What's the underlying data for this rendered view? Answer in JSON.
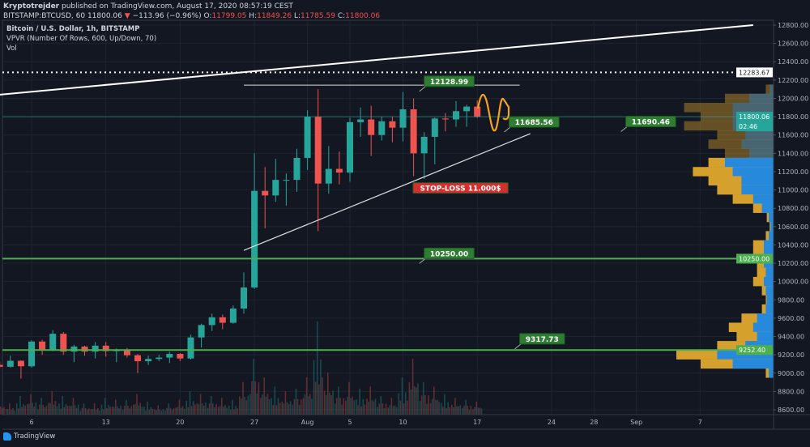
{
  "header": {
    "author": "Kryptotrejder",
    "published": "published on TradingView.com, August 17, 2020 08:57:19 CEST",
    "symbol": "BITSTAMP:BTCUSD, 60",
    "last": "11800.06",
    "change": "−113.96 (−0.96%)",
    "o_label": "O:",
    "o": "11799.05",
    "h_label": "H:",
    "h": "11849.26",
    "l_label": "L:",
    "l": "11785.59",
    "c_label": "C:",
    "c": "11800.06"
  },
  "legend": {
    "title": "Bitcoin / U.S. Dollar, 1h, BITSTAMP",
    "vpvr": "VPVR (Number Of Rows, 600, Up/Down, 70)",
    "vol": "Vol"
  },
  "footer": {
    "brand": "TradingView"
  },
  "chart_data": {
    "type": "candlestick",
    "ylim": [
      8500,
      12850
    ],
    "yticks": [
      "12800.00",
      "12600.00",
      "12400.00",
      "12200.00",
      "12000.00",
      "11800.00",
      "11600.00",
      "11400.00",
      "11200.00",
      "11000.00",
      "10800.00",
      "10600.00",
      "10400.00",
      "10200.00",
      "10000.00",
      "9800.00",
      "9600.00",
      "9400.00",
      "9200.00",
      "9000.00",
      "8800.00",
      "8600.00"
    ],
    "xticks": [
      {
        "label": "6",
        "date": "2020-07-06"
      },
      {
        "label": "13",
        "date": "2020-07-13"
      },
      {
        "label": "20",
        "date": "2020-07-20"
      },
      {
        "label": "27",
        "date": "2020-07-27"
      },
      {
        "label": "Aug",
        "date": "2020-08-01"
      },
      {
        "label": "5",
        "date": "2020-08-05"
      },
      {
        "label": "10",
        "date": "2020-08-10"
      },
      {
        "label": "17",
        "date": "2020-08-17"
      },
      {
        "label": "24",
        "date": "2020-08-24"
      },
      {
        "label": "28",
        "date": "2020-08-28"
      },
      {
        "label": "Sep",
        "date": "2020-09-01"
      },
      {
        "label": "7",
        "date": "2020-09-07"
      }
    ],
    "xrange": [
      "2020-07-03",
      "2020-09-12"
    ],
    "grid": true,
    "colors": {
      "up": "#26a69a",
      "down": "#ef5350",
      "bg": "#131722",
      "grid": "#1e2330",
      "vp_up": "#1e88e5",
      "vp_total": "#e0a82e",
      "annotation": "#2e7d32",
      "stop": "#d32f2f",
      "wave": "#f7a21b"
    },
    "candles": [
      [
        "2020-07-03",
        9090,
        9125,
        9050,
        9070
      ],
      [
        "2020-07-04",
        9070,
        9190,
        9060,
        9135
      ],
      [
        "2020-07-05",
        9135,
        9140,
        8940,
        9075
      ],
      [
        "2020-07-06",
        9075,
        9360,
        9060,
        9345
      ],
      [
        "2020-07-07",
        9345,
        9365,
        9200,
        9250
      ],
      [
        "2020-07-08",
        9250,
        9470,
        9240,
        9430
      ],
      [
        "2020-07-09",
        9430,
        9450,
        9200,
        9235
      ],
      [
        "2020-07-10",
        9235,
        9310,
        9120,
        9290
      ],
      [
        "2020-07-11",
        9290,
        9300,
        9190,
        9235
      ],
      [
        "2020-07-12",
        9235,
        9340,
        9160,
        9300
      ],
      [
        "2020-07-13",
        9300,
        9340,
        9180,
        9240
      ],
      [
        "2020-07-14",
        9240,
        9270,
        9120,
        9250
      ],
      [
        "2020-07-15",
        9250,
        9275,
        9170,
        9195
      ],
      [
        "2020-07-16",
        9195,
        9210,
        9000,
        9130
      ],
      [
        "2020-07-17",
        9130,
        9190,
        9090,
        9155
      ],
      [
        "2020-07-18",
        9155,
        9200,
        9130,
        9170
      ],
      [
        "2020-07-19",
        9170,
        9235,
        9110,
        9210
      ],
      [
        "2020-07-20",
        9210,
        9220,
        9130,
        9160
      ],
      [
        "2020-07-21",
        9160,
        9420,
        9150,
        9390
      ],
      [
        "2020-07-22",
        9390,
        9540,
        9280,
        9525
      ],
      [
        "2020-07-23",
        9525,
        9650,
        9460,
        9610
      ],
      [
        "2020-07-24",
        9610,
        9640,
        9480,
        9550
      ],
      [
        "2020-07-25",
        9550,
        9740,
        9540,
        9705
      ],
      [
        "2020-07-26",
        9705,
        10100,
        9650,
        9935
      ],
      [
        "2020-07-27",
        9935,
        11400,
        9920,
        10990
      ],
      [
        "2020-07-28",
        10990,
        11250,
        10580,
        10940
      ],
      [
        "2020-07-29",
        10940,
        11340,
        10870,
        11110
      ],
      [
        "2020-07-30",
        11110,
        11180,
        10830,
        11110
      ],
      [
        "2020-07-31",
        11110,
        11450,
        10980,
        11350
      ],
      [
        "2020-08-01",
        11350,
        11870,
        11220,
        11800
      ],
      [
        "2020-08-02",
        11800,
        12100,
        10550,
        11070
      ],
      [
        "2020-08-03",
        11070,
        11480,
        10960,
        11230
      ],
      [
        "2020-08-04",
        11230,
        11420,
        11060,
        11190
      ],
      [
        "2020-08-05",
        11190,
        11790,
        11090,
        11740
      ],
      [
        "2020-08-06",
        11740,
        11900,
        11580,
        11770
      ],
      [
        "2020-08-07",
        11770,
        11920,
        11370,
        11600
      ],
      [
        "2020-08-08",
        11600,
        11800,
        11540,
        11750
      ],
      [
        "2020-08-09",
        11750,
        11800,
        11520,
        11680
      ],
      [
        "2020-08-10",
        11680,
        12070,
        11530,
        11880
      ],
      [
        "2020-08-11",
        11880,
        12000,
        11150,
        11400
      ],
      [
        "2020-08-12",
        11400,
        11630,
        11120,
        11580
      ],
      [
        "2020-08-13",
        11580,
        11790,
        11280,
        11780
      ],
      [
        "2020-08-14",
        11780,
        11840,
        11640,
        11770
      ],
      [
        "2020-08-15",
        11770,
        11970,
        11690,
        11860
      ],
      [
        "2020-08-16",
        11860,
        11930,
        11690,
        11910
      ],
      [
        "2020-08-17",
        11910,
        11980,
        11785,
        11800
      ]
    ],
    "volume_relative": [
      15,
      12,
      20,
      22,
      18,
      25,
      20,
      18,
      12,
      12,
      18,
      16,
      16,
      22,
      14,
      10,
      12,
      16,
      25,
      22,
      20,
      18,
      16,
      35,
      60,
      40,
      30,
      25,
      28,
      40,
      100,
      45,
      30,
      35,
      28,
      30,
      20,
      18,
      40,
      60,
      35,
      30,
      22,
      18,
      16,
      14
    ],
    "volume_profile": {
      "prices": [
        12100,
        12000,
        11900,
        11800,
        11700,
        11600,
        11500,
        11400,
        11300,
        11200,
        11100,
        11000,
        10900,
        10800,
        10700,
        10600,
        10500,
        10400,
        10300,
        10250,
        10200,
        10100,
        10000,
        9900,
        9800,
        9700,
        9600,
        9500,
        9400,
        9300,
        9200,
        9100,
        9000
      ],
      "total": [
        8,
        50,
        92,
        75,
        92,
        58,
        67,
        50,
        67,
        83,
        67,
        58,
        42,
        21,
        7,
        4,
        8,
        21,
        21,
        33,
        17,
        17,
        21,
        12,
        8,
        12,
        33,
        46,
        38,
        58,
        100,
        75,
        8
      ],
      "up": [
        4,
        25,
        42,
        42,
        42,
        29,
        33,
        25,
        50,
        42,
        33,
        33,
        21,
        12,
        5,
        3,
        5,
        10,
        10,
        17,
        10,
        8,
        10,
        8,
        7,
        8,
        17,
        21,
        17,
        29,
        58,
        42,
        5
      ],
      "value_area": [
        10900,
        11300
      ]
    },
    "drawings": {
      "trendline_top": {
        "from": [
          "2020-07-03",
          12040
        ],
        "to": [
          "2020-09-12",
          12800
        ]
      },
      "dotted_level": "12283.67",
      "resistance": {
        "from": [
          "2020-07-26",
          12145
        ],
        "to": [
          "2020-08-21",
          12145
        ]
      },
      "support": {
        "from": [
          "2020-07-26",
          10340
        ],
        "to": [
          "2020-08-22",
          11615
        ]
      },
      "levels": [
        "10250.00",
        "9252.40"
      ],
      "last_price": "11800.06",
      "countdown": "02:46",
      "labels": [
        {
          "text": "12128.99",
          "date": "2020-08-12",
          "price": 12128.99
        },
        {
          "text": "11685.56",
          "date": "2020-08-20",
          "price": 11685.56
        },
        {
          "text": "11690.46",
          "date": "2020-08-31",
          "price": 11690.46
        },
        {
          "text": "10250.00",
          "date": "2020-08-12",
          "price": 10250
        },
        {
          "text": "9317.73",
          "date": "2020-08-21",
          "price": 9317.73
        }
      ],
      "stop_loss": {
        "text": "STOP-LOSS 11.000$",
        "date": "2020-08-14",
        "price": 11000
      }
    }
  }
}
